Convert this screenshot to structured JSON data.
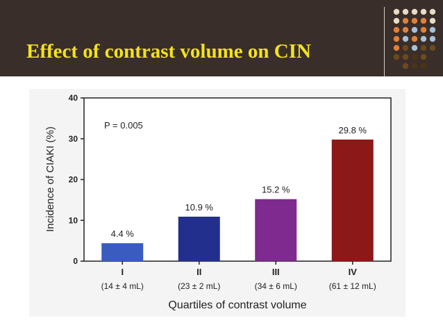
{
  "slide": {
    "title": "Effect of contrast volume on CIN"
  },
  "decor": {
    "dot_colors": [
      "#e8dcc8",
      "#e0803a",
      "#a8c0d8",
      "#6b4a1e",
      "#4a3414"
    ]
  },
  "chart_data": {
    "type": "bar",
    "categories": [
      "I",
      "II",
      "III",
      "IV"
    ],
    "sublabels": [
      "(14 ± 4 mL)",
      "(23 ± 2 mL)",
      "(34 ± 6 mL)",
      "(61 ± 12 mL)"
    ],
    "values": [
      4.4,
      10.9,
      15.2,
      29.8
    ],
    "data_labels": [
      "4.4 %",
      "10.9 %",
      "15.2 %",
      "29.8 %"
    ],
    "bar_colors": [
      "#3a5cc0",
      "#232f8c",
      "#7e2a8e",
      "#8c1818"
    ],
    "xlabel": "Quartiles of contrast volume",
    "ylabel": "Incidence of CIAKI (%)",
    "ylim": [
      0,
      40
    ],
    "yticks": [
      0,
      10,
      20,
      30,
      40
    ],
    "annotation": "P = 0.005",
    "grid": false
  }
}
